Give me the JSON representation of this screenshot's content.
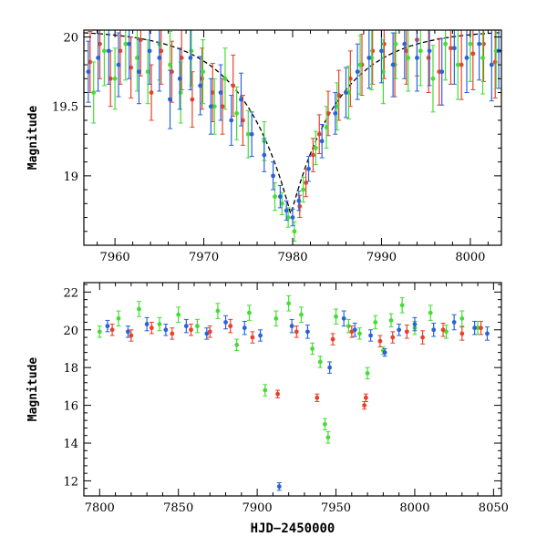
{
  "chart_data": [
    {
      "panel": "top",
      "type": "scatter",
      "title": "",
      "xlabel": "",
      "ylabel": "Magnitude",
      "xlim": [
        7956.5,
        8003.5
      ],
      "ylim": [
        20.05,
        18.5
      ],
      "y_inverted": true,
      "x_ticks": [
        7960,
        7970,
        7980,
        7990,
        8000
      ],
      "y_ticks": [
        19,
        19.5,
        20
      ],
      "x_tick_labels": [
        "7960",
        "7970",
        "7980",
        "7990",
        "8000"
      ],
      "y_tick_labels": [
        "19",
        "19.5",
        "20"
      ],
      "grid": false,
      "model_curve": {
        "type": "line",
        "style": "dashed",
        "color": "#000000",
        "peak_x": 7979.8,
        "peak_y": 18.72,
        "baseline": 20.05,
        "amplitude": 1.33,
        "timescale": 5.5
      },
      "series": [
        {
          "color": "#e8412a",
          "points": [
            [
              7957.2,
              19.82,
              0.22
            ],
            [
              7958.3,
              19.95,
              0.25
            ],
            [
              7959.5,
              19.7,
              0.2
            ],
            [
              7960.6,
              19.9,
              0.24
            ],
            [
              7961.8,
              19.78,
              0.22
            ],
            [
              7962.9,
              19.98,
              0.26
            ],
            [
              7964.1,
              19.6,
              0.2
            ],
            [
              7965.2,
              19.9,
              0.24
            ],
            [
              7966.4,
              19.75,
              0.22
            ],
            [
              7967.5,
              19.85,
              0.23
            ],
            [
              7968.7,
              19.55,
              0.2
            ],
            [
              7969.8,
              19.7,
              0.22
            ],
            [
              7971.0,
              19.6,
              0.21
            ],
            [
              7972.1,
              19.5,
              0.2
            ],
            [
              7973.3,
              19.65,
              0.22
            ],
            [
              7974.4,
              19.4,
              0.18
            ],
            [
              7980.8,
              18.78,
              0.08
            ],
            [
              7981.5,
              18.95,
              0.1
            ],
            [
              7982.3,
              19.15,
              0.12
            ],
            [
              7983.0,
              19.3,
              0.14
            ],
            [
              7984.0,
              19.45,
              0.16
            ],
            [
              7985.2,
              19.58,
              0.18
            ],
            [
              7986.5,
              19.7,
              0.2
            ],
            [
              7987.8,
              19.8,
              0.22
            ],
            [
              7989.0,
              19.9,
              0.24
            ],
            [
              7990.3,
              19.95,
              0.25
            ],
            [
              7991.5,
              19.8,
              0.23
            ],
            [
              7992.8,
              19.9,
              0.24
            ],
            [
              7994.0,
              19.98,
              0.26
            ],
            [
              7995.3,
              19.85,
              0.25
            ],
            [
              7996.5,
              19.75,
              0.24
            ],
            [
              7997.8,
              19.92,
              0.26
            ],
            [
              7999.0,
              19.8,
              0.25
            ],
            [
              8000.3,
              19.88,
              0.26
            ],
            [
              8001.5,
              19.95,
              0.27
            ],
            [
              8002.8,
              19.82,
              0.26
            ]
          ]
        },
        {
          "color": "#44dd33",
          "points": [
            [
              7957.6,
              19.6,
              0.22
            ],
            [
              7958.8,
              19.9,
              0.25
            ],
            [
              7960.0,
              19.7,
              0.22
            ],
            [
              7961.2,
              19.95,
              0.26
            ],
            [
              7962.5,
              19.85,
              0.24
            ],
            [
              7963.7,
              19.75,
              0.23
            ],
            [
              7965.0,
              19.95,
              0.26
            ],
            [
              7966.2,
              19.8,
              0.24
            ],
            [
              7967.4,
              19.6,
              0.22
            ],
            [
              7968.6,
              19.9,
              0.25
            ],
            [
              7969.9,
              19.75,
              0.23
            ],
            [
              7971.2,
              19.5,
              0.2
            ],
            [
              7972.4,
              19.7,
              0.22
            ],
            [
              7973.7,
              19.45,
              0.19
            ],
            [
              7975.0,
              19.3,
              0.17
            ],
            [
              7976.8,
              19.25,
              0.14
            ],
            [
              7978.0,
              18.85,
              0.1
            ],
            [
              7978.8,
              18.8,
              0.08
            ],
            [
              7979.5,
              18.7,
              0.07
            ],
            [
              7980.2,
              18.6,
              0.07
            ],
            [
              7981.2,
              18.9,
              0.09
            ],
            [
              7982.6,
              19.2,
              0.12
            ],
            [
              7983.8,
              19.35,
              0.15
            ],
            [
              7985.0,
              19.5,
              0.17
            ],
            [
              7986.3,
              19.6,
              0.19
            ],
            [
              7987.6,
              19.8,
              0.21
            ],
            [
              7988.9,
              19.85,
              0.23
            ],
            [
              7990.2,
              19.75,
              0.23
            ],
            [
              7991.6,
              19.95,
              0.25
            ],
            [
              7993.0,
              19.85,
              0.24
            ],
            [
              7994.4,
              19.9,
              0.25
            ],
            [
              7995.8,
              19.7,
              0.24
            ],
            [
              7997.2,
              19.95,
              0.26
            ],
            [
              7998.6,
              19.8,
              0.25
            ],
            [
              8000.0,
              19.95,
              0.27
            ],
            [
              8001.4,
              19.85,
              0.26
            ],
            [
              8002.9,
              19.9,
              0.27
            ]
          ]
        },
        {
          "color": "#2a62d8",
          "points": [
            [
              7957.0,
              19.75,
              0.22
            ],
            [
              7958.1,
              19.85,
              0.24
            ],
            [
              7959.3,
              19.9,
              0.24
            ],
            [
              7960.4,
              19.8,
              0.23
            ],
            [
              7961.6,
              19.95,
              0.25
            ],
            [
              7962.7,
              19.75,
              0.23
            ],
            [
              7963.9,
              19.9,
              0.24
            ],
            [
              7965.0,
              19.85,
              0.24
            ],
            [
              7966.2,
              19.55,
              0.21
            ],
            [
              7967.3,
              19.7,
              0.22
            ],
            [
              7968.5,
              19.85,
              0.23
            ],
            [
              7969.6,
              19.65,
              0.21
            ],
            [
              7970.8,
              19.5,
              0.2
            ],
            [
              7971.9,
              19.6,
              0.2
            ],
            [
              7973.1,
              19.4,
              0.18
            ],
            [
              7974.2,
              19.55,
              0.19
            ],
            [
              7975.4,
              19.3,
              0.16
            ],
            [
              7976.8,
              19.15,
              0.12
            ],
            [
              7977.8,
              19.0,
              0.1
            ],
            [
              7978.6,
              18.85,
              0.08
            ],
            [
              7979.3,
              18.75,
              0.07
            ],
            [
              7980.0,
              18.7,
              0.06
            ],
            [
              7980.7,
              18.82,
              0.07
            ],
            [
              7981.8,
              19.05,
              0.09
            ],
            [
              7983.3,
              19.25,
              0.12
            ],
            [
              7984.8,
              19.45,
              0.15
            ],
            [
              7986.0,
              19.6,
              0.18
            ],
            [
              7987.3,
              19.75,
              0.2
            ],
            [
              7988.6,
              19.85,
              0.22
            ],
            [
              7990.0,
              19.9,
              0.23
            ],
            [
              7991.3,
              19.8,
              0.23
            ],
            [
              7992.6,
              19.95,
              0.25
            ],
            [
              7994.0,
              19.85,
              0.24
            ],
            [
              7995.4,
              19.9,
              0.25
            ],
            [
              7996.8,
              19.75,
              0.24
            ],
            [
              7998.2,
              19.92,
              0.26
            ],
            [
              7999.6,
              19.85,
              0.25
            ],
            [
              8001.0,
              19.95,
              0.26
            ],
            [
              8002.4,
              19.8,
              0.26
            ],
            [
              8003.2,
              19.9,
              0.27
            ]
          ]
        }
      ]
    },
    {
      "panel": "bottom",
      "type": "scatter",
      "title": "",
      "xlabel": "HJD−2450000",
      "ylabel": "Magnitude",
      "xlim": [
        7790,
        8055
      ],
      "ylim": [
        22.5,
        11.2
      ],
      "y_inverted": true,
      "x_ticks": [
        7800,
        7850,
        7900,
        7950,
        8000,
        8050
      ],
      "y_ticks": [
        12,
        14,
        16,
        18,
        20,
        22
      ],
      "x_tick_labels": [
        "7800",
        "7850",
        "7900",
        "7950",
        "8000",
        "8050"
      ],
      "y_tick_labels": [
        "12",
        "14",
        "16",
        "18",
        "20",
        "22"
      ],
      "grid": false,
      "series": [
        {
          "color": "#44dd33",
          "points": [
            [
              7800,
              19.9,
              0.3
            ],
            [
              7812,
              20.6,
              0.4
            ],
            [
              7825,
              21.1,
              0.4
            ],
            [
              7838,
              20.3,
              0.35
            ],
            [
              7850,
              20.8,
              0.4
            ],
            [
              7862,
              20.2,
              0.35
            ],
            [
              7875,
              21.0,
              0.4
            ],
            [
              7887,
              19.2,
              0.3
            ],
            [
              7895,
              20.9,
              0.4
            ],
            [
              7905,
              16.8,
              0.3
            ],
            [
              7912,
              20.6,
              0.4
            ],
            [
              7920,
              21.4,
              0.4
            ],
            [
              7928,
              20.8,
              0.4
            ],
            [
              7935,
              19.0,
              0.3
            ],
            [
              7940,
              18.3,
              0.3
            ],
            [
              7943,
              15.0,
              0.3
            ],
            [
              7945,
              14.3,
              0.3
            ],
            [
              7950,
              20.7,
              0.4
            ],
            [
              7958,
              20.2,
              0.35
            ],
            [
              7965,
              19.8,
              0.3
            ],
            [
              7970,
              17.7,
              0.3
            ],
            [
              7975,
              20.4,
              0.35
            ],
            [
              7980,
              18.9,
              0.2
            ],
            [
              7985,
              20.5,
              0.35
            ],
            [
              7992,
              21.3,
              0.4
            ],
            [
              8000,
              20.1,
              0.35
            ],
            [
              8010,
              20.9,
              0.4
            ],
            [
              8020,
              19.9,
              0.35
            ],
            [
              8030,
              20.6,
              0.4
            ],
            [
              8040,
              20.1,
              0.35
            ]
          ]
        },
        {
          "color": "#2a62d8",
          "points": [
            [
              7805,
              20.2,
              0.3
            ],
            [
              7818,
              19.9,
              0.3
            ],
            [
              7830,
              20.3,
              0.35
            ],
            [
              7842,
              20.0,
              0.3
            ],
            [
              7855,
              20.2,
              0.35
            ],
            [
              7868,
              19.8,
              0.3
            ],
            [
              7880,
              20.4,
              0.35
            ],
            [
              7892,
              20.1,
              0.35
            ],
            [
              7902,
              19.7,
              0.3
            ],
            [
              7914,
              11.7,
              0.2
            ],
            [
              7922,
              20.2,
              0.35
            ],
            [
              7932,
              19.9,
              0.35
            ],
            [
              7946,
              18.0,
              0.3
            ],
            [
              7955,
              20.6,
              0.4
            ],
            [
              7962,
              20.0,
              0.35
            ],
            [
              7972,
              19.7,
              0.3
            ],
            [
              7981,
              18.8,
              0.2
            ],
            [
              7990,
              20.0,
              0.3
            ],
            [
              8000,
              20.3,
              0.35
            ],
            [
              8012,
              20.0,
              0.35
            ],
            [
              8025,
              20.4,
              0.4
            ],
            [
              8038,
              20.1,
              0.35
            ],
            [
              8046,
              19.8,
              0.35
            ]
          ]
        },
        {
          "color": "#e8412a",
          "points": [
            [
              7808,
              20.0,
              0.3
            ],
            [
              7820,
              19.7,
              0.3
            ],
            [
              7833,
              20.1,
              0.3
            ],
            [
              7846,
              19.8,
              0.3
            ],
            [
              7858,
              20.0,
              0.3
            ],
            [
              7870,
              19.9,
              0.3
            ],
            [
              7883,
              20.2,
              0.35
            ],
            [
              7897,
              19.6,
              0.3
            ],
            [
              7913,
              16.6,
              0.2
            ],
            [
              7925,
              19.9,
              0.3
            ],
            [
              7938,
              16.4,
              0.2
            ],
            [
              7948,
              19.5,
              0.3
            ],
            [
              7960,
              19.9,
              0.3
            ],
            [
              7968,
              16.0,
              0.2
            ],
            [
              7969,
              16.4,
              0.2
            ],
            [
              7978,
              19.4,
              0.3
            ],
            [
              7986,
              19.6,
              0.3
            ],
            [
              7995,
              19.9,
              0.35
            ],
            [
              8005,
              19.6,
              0.35
            ],
            [
              8018,
              20.0,
              0.35
            ],
            [
              8030,
              19.8,
              0.35
            ],
            [
              8042,
              20.1,
              0.35
            ]
          ]
        }
      ]
    }
  ]
}
